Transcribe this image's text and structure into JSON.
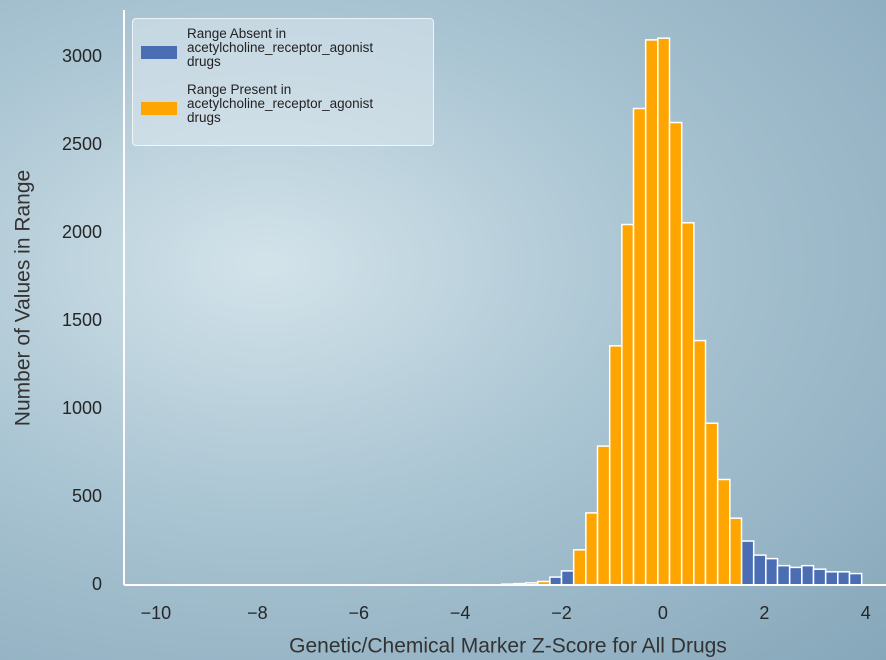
{
  "chart_data": {
    "type": "histogram",
    "x_label": "Genetic/Chemical Marker Z-Score for All Drugs",
    "y_label": "Number of Values in Range",
    "bins": [
      -3.18,
      -2.94,
      -2.71,
      -2.47,
      -2.23,
      -2.0,
      -1.76,
      -1.52,
      -1.29,
      -1.05,
      -0.81,
      -0.58,
      -0.34,
      -0.1,
      0.13,
      0.37,
      0.61,
      0.84,
      1.08,
      1.32,
      1.55,
      1.79,
      2.03,
      2.26,
      2.5,
      2.74,
      2.97,
      3.21,
      3.45,
      3.68,
      3.92
    ],
    "series": [
      {
        "name": "Range Absent in acetylcholine_receptor_agonist drugs",
        "color": "#4a6db3",
        "values": [
          null,
          null,
          null,
          null,
          45,
          80,
          null,
          null,
          null,
          null,
          null,
          null,
          null,
          null,
          null,
          null,
          null,
          null,
          null,
          null,
          250,
          170,
          150,
          110,
          100,
          110,
          90,
          75,
          75,
          65
        ]
      },
      {
        "name": "Range Present in acetylcholine_receptor_agonist drugs",
        "color": "#ffa500",
        "values": [
          5,
          8,
          12,
          20,
          null,
          null,
          200,
          410,
          790,
          1360,
          2050,
          2710,
          3100,
          3110,
          2630,
          2060,
          1390,
          920,
          600,
          380,
          null,
          null,
          null,
          null,
          null,
          null,
          null,
          null,
          null,
          null
        ]
      }
    ],
    "xlim": [
      -10.63,
      4.4
    ],
    "ylim": [
      0,
      3270
    ],
    "xticks": [
      {
        "value": -10,
        "label": "−10"
      },
      {
        "value": -8,
        "label": "−8"
      },
      {
        "value": -6,
        "label": "−6"
      },
      {
        "value": -4,
        "label": "−4"
      },
      {
        "value": -2,
        "label": "−2"
      },
      0,
      2,
      4
    ],
    "yticks": [
      0,
      500,
      1000,
      1500,
      2000,
      2500,
      3000
    ],
    "legend": "upper-left"
  }
}
